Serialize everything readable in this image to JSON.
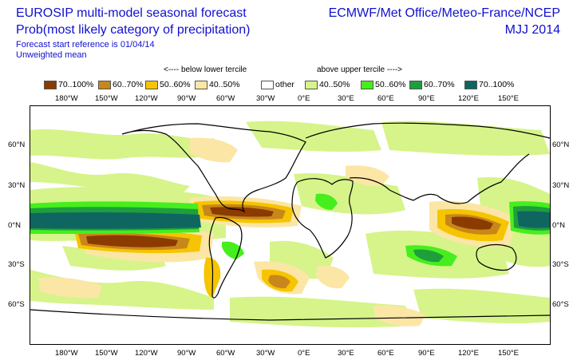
{
  "title_left": {
    "line1": "EUROSIP multi-model seasonal forecast",
    "line2": "Prob(most likely category of precipitation)",
    "line3": "Forecast start reference is 01/04/14",
    "line4": "Unweighted mean"
  },
  "title_right": {
    "line1": "ECMWF/Met Office/Meteo-France/NCEP",
    "line2": "MJJ 2014"
  },
  "tercile_labels": {
    "below": "<---- below lower tercile",
    "above": "above upper tercile ---->"
  },
  "legend": [
    {
      "label": "70..100%",
      "color": "#8b3b00"
    },
    {
      "label": "60..70%",
      "color": "#c8871a"
    },
    {
      "label": "50..60%",
      "color": "#f6c400"
    },
    {
      "label": "40..50%",
      "color": "#fbe6a5"
    },
    {
      "label": "other",
      "color": "#ffffff"
    },
    {
      "label": "40..50%",
      "color": "#d6f48a"
    },
    {
      "label": "50..60%",
      "color": "#46ee1e"
    },
    {
      "label": "60..70%",
      "color": "#1e9e3c"
    },
    {
      "label": "70..100%",
      "color": "#0f6660"
    }
  ],
  "lon_labels": [
    "180°W",
    "150°W",
    "120°W",
    "90°W",
    "60°W",
    "30°W",
    "0°E",
    "30°E",
    "60°E",
    "90°E",
    "120°E",
    "150°E"
  ],
  "lat_labels": [
    "60°N",
    "30°N",
    "0°N",
    "30°S",
    "60°S"
  ]
}
